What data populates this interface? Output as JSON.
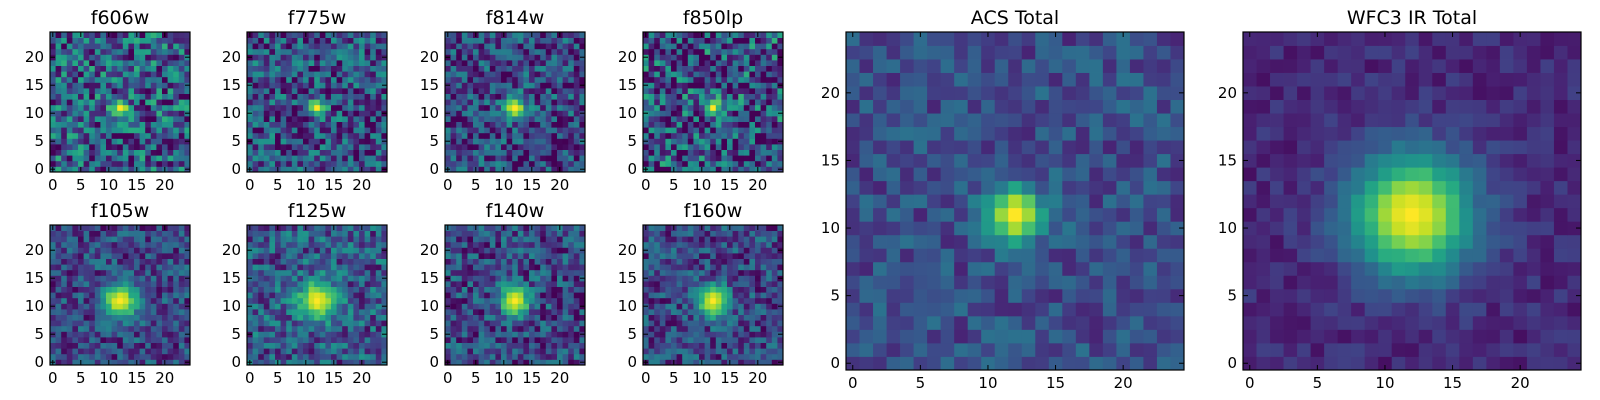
{
  "chart_data": [
    {
      "type": "heatmap",
      "title": "f606w",
      "grid_size": 25,
      "xlim": [
        -0.5,
        24.5
      ],
      "ylim": [
        -0.5,
        24.5
      ],
      "xticks": [
        0,
        5,
        10,
        15,
        20
      ],
      "yticks": [
        0,
        5,
        10,
        15,
        20
      ],
      "colormap": "viridis",
      "peak": {
        "x": 12,
        "y": 11
      },
      "peak_value": 1.0,
      "background_level": 0.3,
      "noise_level": 0.35,
      "psf_width": 1.1
    },
    {
      "type": "heatmap",
      "title": "f775w",
      "grid_size": 25,
      "xlim": [
        -0.5,
        24.5
      ],
      "ylim": [
        -0.5,
        24.5
      ],
      "xticks": [
        0,
        5,
        10,
        15,
        20
      ],
      "yticks": [
        0,
        5,
        10,
        15,
        20
      ],
      "colormap": "viridis",
      "peak": {
        "x": 12,
        "y": 11
      },
      "peak_value": 1.0,
      "background_level": 0.25,
      "noise_level": 0.3,
      "psf_width": 1.1
    },
    {
      "type": "heatmap",
      "title": "f814w",
      "grid_size": 25,
      "xlim": [
        -0.5,
        24.5
      ],
      "ylim": [
        -0.5,
        24.5
      ],
      "xticks": [
        0,
        5,
        10,
        15,
        20
      ],
      "yticks": [
        0,
        5,
        10,
        15,
        20
      ],
      "colormap": "viridis",
      "peak": {
        "x": 12,
        "y": 11
      },
      "peak_value": 1.0,
      "background_level": 0.22,
      "noise_level": 0.28,
      "psf_width": 1.4
    },
    {
      "type": "heatmap",
      "title": "f850lp",
      "grid_size": 25,
      "xlim": [
        -0.5,
        24.5
      ],
      "ylim": [
        -0.5,
        24.5
      ],
      "xticks": [
        0,
        5,
        10,
        15,
        20
      ],
      "yticks": [
        0,
        5,
        10,
        15,
        20
      ],
      "colormap": "viridis",
      "peak": {
        "x": 12,
        "y": 11
      },
      "peak_value": 1.0,
      "background_level": 0.25,
      "noise_level": 0.4,
      "psf_width": 1.0
    },
    {
      "type": "heatmap",
      "title": "f105w",
      "grid_size": 25,
      "xlim": [
        -0.5,
        24.5
      ],
      "ylim": [
        -0.5,
        24.5
      ],
      "xticks": [
        0,
        5,
        10,
        15,
        20
      ],
      "yticks": [
        0,
        5,
        10,
        15,
        20
      ],
      "colormap": "viridis",
      "peak": {
        "x": 12,
        "y": 11
      },
      "peak_value": 1.0,
      "background_level": 0.22,
      "noise_level": 0.22,
      "psf_width": 2.2
    },
    {
      "type": "heatmap",
      "title": "f125w",
      "grid_size": 25,
      "xlim": [
        -0.5,
        24.5
      ],
      "ylim": [
        -0.5,
        24.5
      ],
      "xticks": [
        0,
        5,
        10,
        15,
        20
      ],
      "yticks": [
        0,
        5,
        10,
        15,
        20
      ],
      "colormap": "viridis",
      "peak": {
        "x": 12,
        "y": 11
      },
      "peak_value": 1.0,
      "background_level": 0.28,
      "noise_level": 0.25,
      "psf_width": 2.4
    },
    {
      "type": "heatmap",
      "title": "f140w",
      "grid_size": 25,
      "xlim": [
        -0.5,
        24.5
      ],
      "ylim": [
        -0.5,
        24.5
      ],
      "xticks": [
        0,
        5,
        10,
        15,
        20
      ],
      "yticks": [
        0,
        5,
        10,
        15,
        20
      ],
      "colormap": "viridis",
      "peak": {
        "x": 12,
        "y": 11
      },
      "peak_value": 1.0,
      "background_level": 0.22,
      "noise_level": 0.25,
      "psf_width": 1.9
    },
    {
      "type": "heatmap",
      "title": "f160w",
      "grid_size": 25,
      "xlim": [
        -0.5,
        24.5
      ],
      "ylim": [
        -0.5,
        24.5
      ],
      "xticks": [
        0,
        5,
        10,
        15,
        20
      ],
      "yticks": [
        0,
        5,
        10,
        15,
        20
      ],
      "colormap": "viridis",
      "peak": {
        "x": 12,
        "y": 11
      },
      "peak_value": 1.0,
      "background_level": 0.22,
      "noise_level": 0.22,
      "psf_width": 2.0
    },
    {
      "type": "heatmap",
      "title": "ACS Total",
      "grid_size": 25,
      "xlim": [
        -0.5,
        24.5
      ],
      "ylim": [
        -0.5,
        24.5
      ],
      "xticks": [
        0,
        5,
        10,
        15,
        20
      ],
      "yticks": [
        0,
        5,
        10,
        15,
        20
      ],
      "colormap": "viridis",
      "peak": {
        "x": 12,
        "y": 11
      },
      "peak_value": 1.0,
      "background_level": 0.24,
      "noise_level": 0.14,
      "psf_width": 1.5
    },
    {
      "type": "heatmap",
      "title": "WFC3 IR Total",
      "grid_size": 25,
      "xlim": [
        -0.5,
        24.5
      ],
      "ylim": [
        -0.5,
        24.5
      ],
      "xticks": [
        0,
        5,
        10,
        15,
        20
      ],
      "yticks": [
        0,
        5,
        10,
        15,
        20
      ],
      "colormap": "viridis",
      "peak": {
        "x": 12,
        "y": 11
      },
      "peak_value": 1.0,
      "background_level": 0.12,
      "noise_level": 0.08,
      "psf_width": 3.2
    }
  ]
}
